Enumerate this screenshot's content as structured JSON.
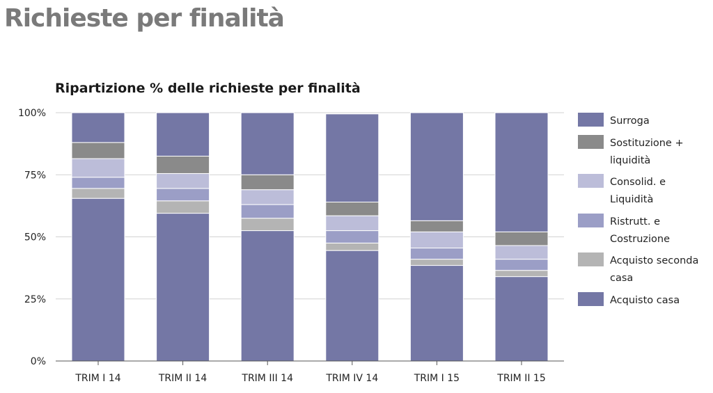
{
  "page": {
    "title": "Richieste per finalità"
  },
  "chart_data": {
    "type": "bar",
    "stacked": true,
    "title": "Ripartizione % delle richieste per finalità",
    "xlabel": "",
    "ylabel": "",
    "ylim": [
      0,
      100
    ],
    "y_ticks": [
      "0%",
      "25%",
      "50%",
      "75%",
      "100%"
    ],
    "y_tick_values": [
      0,
      25,
      50,
      75,
      100
    ],
    "grid": true,
    "legend_position": "right",
    "categories": [
      "TRIM I 14",
      "TRIM II 14",
      "TRIM III 14",
      "TRIM IV 14",
      "TRIM I 15",
      "TRIM II 15"
    ],
    "series": [
      {
        "name": "Acquisto casa",
        "legend_label": [
          "Acquisto casa"
        ],
        "color": "#7477a5",
        "values": [
          65.5,
          59.5,
          52.5,
          44.5,
          38.5,
          34
        ]
      },
      {
        "name": "Acquisto seconda casa",
        "legend_label": [
          "Acquisto seconda",
          "casa"
        ],
        "color": "#b4b4b4",
        "values": [
          4,
          5,
          5,
          3,
          2.5,
          2.5
        ]
      },
      {
        "name": "Ristrutt. e Costruzione",
        "legend_label": [
          "Ristrutt. e",
          "Costruzione"
        ],
        "color": "#9b9ec6",
        "values": [
          4.5,
          5,
          5.5,
          5,
          4.5,
          4.5
        ]
      },
      {
        "name": "Consolid. e Liquidità",
        "legend_label": [
          "Consolid. e",
          "Liquidità"
        ],
        "color": "#bcbdd9",
        "values": [
          7.5,
          6,
          6,
          6,
          6.5,
          5.5
        ]
      },
      {
        "name": "Sostituzione + liquidità",
        "legend_label": [
          "Sostituzione +",
          "liquidità"
        ],
        "color": "#8a8a8a",
        "values": [
          6.5,
          7,
          6,
          5.5,
          4.5,
          5.5
        ]
      },
      {
        "name": "Surroga",
        "legend_label": [
          "Surroga"
        ],
        "color": "#7477a5",
        "values": [
          12,
          17.5,
          25,
          35.5,
          43.5,
          48
        ]
      }
    ]
  }
}
